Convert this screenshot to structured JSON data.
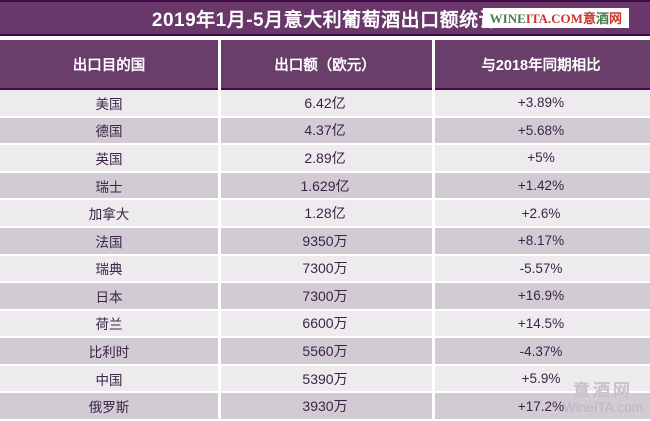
{
  "title_bar": {
    "title": "2019年1月-5月意大利葡萄酒出口额统计",
    "logo": {
      "wine": "WINE",
      "ita": "ITA.COM",
      "cn1": "意",
      "cn2": "酒",
      "cn3": "网"
    }
  },
  "chart_data": {
    "type": "table",
    "title": "2019年1月-5月意大利葡萄酒出口额统计",
    "columns": [
      "出口目的国",
      "出口额（欧元）",
      "与2018年同期相比"
    ],
    "rows": [
      {
        "country": "美国",
        "amount": "6.42亿",
        "change": "+3.89%"
      },
      {
        "country": "德国",
        "amount": "4.37亿",
        "change": "+5.68%"
      },
      {
        "country": "英国",
        "amount": "2.89亿",
        "change": "+5%"
      },
      {
        "country": "瑞士",
        "amount": "1.629亿",
        "change": "+1.42%"
      },
      {
        "country": "加拿大",
        "amount": "1.28亿",
        "change": "+2.6%"
      },
      {
        "country": "法国",
        "amount": "9350万",
        "change": "+8.17%"
      },
      {
        "country": "瑞典",
        "amount": "7300万",
        "change": "-5.57%"
      },
      {
        "country": "日本",
        "amount": "7300万",
        "change": "+16.9%"
      },
      {
        "country": "荷兰",
        "amount": "6600万",
        "change": "+14.5%"
      },
      {
        "country": "比利时",
        "amount": "5560万",
        "change": "-4.37%"
      },
      {
        "country": "中国",
        "amount": "5390万",
        "change": "+5.9%"
      },
      {
        "country": "俄罗斯",
        "amount": "3930万",
        "change": "+17.2%"
      }
    ]
  },
  "watermark": {
    "line1": "意酒网",
    "line2": "WineITA.com"
  },
  "colors": {
    "accent_purple": "#693769",
    "header_purple": "#6a3e6a",
    "dark_border": "#400d44",
    "row_light": "#edebee",
    "row_dark": "#d2cbd4",
    "text_dark": "#3a2547",
    "logo_green": "#4e7d4e",
    "logo_red": "#c43a2f",
    "watermark_gray": "#bdb6be"
  }
}
